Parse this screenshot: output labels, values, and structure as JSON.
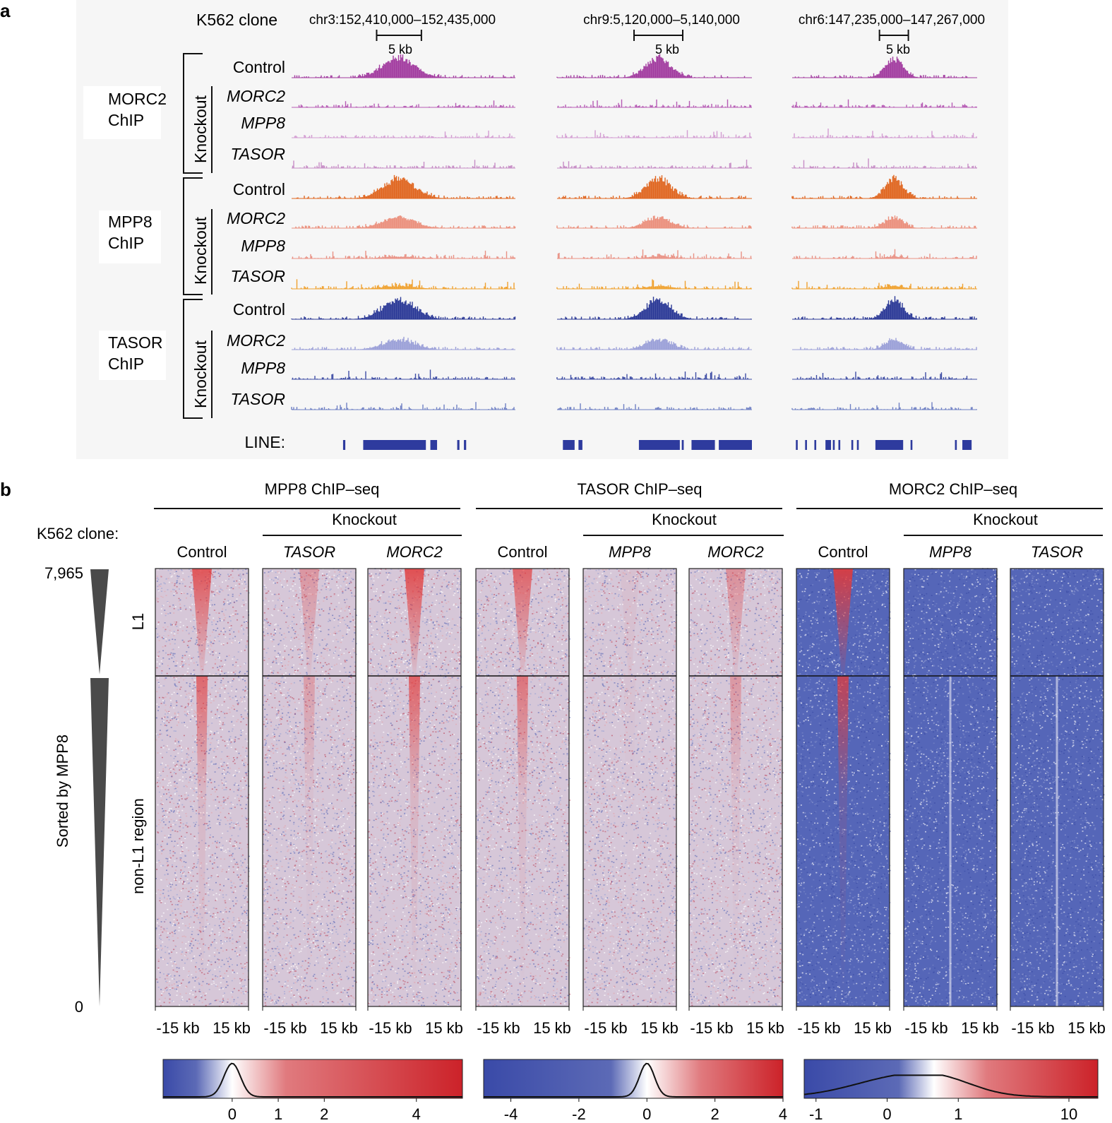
{
  "panel_a": {
    "label": "a",
    "clone_label": "K562 clone",
    "loci": [
      {
        "coord": "chr3:152,410,000–152,435,000",
        "scale": "5 kb",
        "scale_bar_kb": 5,
        "span_kb": 25,
        "peak_center_frac": 0.48,
        "peak_width_frac": 0.22,
        "line_blocks_frac": [
          [
            0.23,
            0.24
          ],
          [
            0.32,
            0.6
          ],
          [
            0.62,
            0.65
          ],
          [
            0.74,
            0.75
          ],
          [
            0.77,
            0.78
          ]
        ]
      },
      {
        "coord": "chr9:5,120,000–5,140,000",
        "scale": "5 kb",
        "scale_bar_kb": 5,
        "span_kb": 20,
        "peak_center_frac": 0.52,
        "peak_width_frac": 0.2,
        "line_blocks_frac": [
          [
            0.03,
            0.09
          ],
          [
            0.11,
            0.13
          ],
          [
            0.42,
            0.63
          ],
          [
            0.64,
            0.65
          ],
          [
            0.69,
            0.81
          ],
          [
            0.83,
            1.0
          ]
        ]
      },
      {
        "coord": "chr6:147,235,000–147,267,000",
        "scale": "5 kb",
        "scale_bar_kb": 5,
        "span_kb": 32,
        "peak_center_frac": 0.55,
        "peak_width_frac": 0.15,
        "line_blocks_frac": [
          [
            0.02,
            0.03
          ],
          [
            0.07,
            0.08
          ],
          [
            0.12,
            0.13
          ],
          [
            0.18,
            0.21
          ],
          [
            0.22,
            0.23
          ],
          [
            0.25,
            0.26
          ],
          [
            0.32,
            0.33
          ],
          [
            0.35,
            0.36
          ],
          [
            0.45,
            0.6
          ],
          [
            0.64,
            0.65
          ],
          [
            0.88,
            0.89
          ],
          [
            0.92,
            0.97
          ]
        ]
      }
    ],
    "chip_groups": [
      {
        "label_line1": "MORC2",
        "label_line2": "ChIP",
        "knockout_label": "Knockout",
        "tracks": [
          {
            "label": "Control",
            "italic": false,
            "color": "#a23b9f",
            "signal": 1.0
          },
          {
            "label": "MORC2",
            "italic": true,
            "color": "#b65bb4",
            "signal": 0.0
          },
          {
            "label": "MPP8",
            "italic": true,
            "color": "#d39cd2",
            "signal": 0.0
          },
          {
            "label": "TASOR",
            "italic": true,
            "color": "#c78dc6",
            "signal": 0.0
          }
        ]
      },
      {
        "label_line1": "MPP8",
        "label_line2": "ChIP",
        "knockout_label": "Knockout",
        "tracks": [
          {
            "label": "Control",
            "italic": false,
            "color": "#e0651f",
            "signal": 1.0
          },
          {
            "label": "MORC2",
            "italic": true,
            "color": "#eb8f7c",
            "signal": 0.55
          },
          {
            "label": "MPP8",
            "italic": true,
            "color": "#e99184",
            "signal": 0.1
          },
          {
            "label": "TASOR",
            "italic": true,
            "color": "#f0a12e",
            "signal": 0.15
          }
        ]
      },
      {
        "label_line1": "TASOR",
        "label_line2": "ChIP",
        "knockout_label": "Knockout",
        "tracks": [
          {
            "label": "Control",
            "italic": false,
            "color": "#2a3896",
            "signal": 1.0
          },
          {
            "label": "MORC2",
            "italic": true,
            "color": "#9a9fd8",
            "signal": 0.5
          },
          {
            "label": "MPP8",
            "italic": true,
            "color": "#3f4ea5",
            "signal": 0.0
          },
          {
            "label": "TASOR",
            "italic": true,
            "color": "#6f80c4",
            "signal": 0.0
          }
        ]
      }
    ],
    "line_label": "LINE:",
    "line_color": "#2e3b9e"
  },
  "panel_b": {
    "label": "b",
    "clone_label": "K562 clone:",
    "sort_label": "Sorted by MPP8",
    "sort_max": "7,965",
    "sort_min": "0",
    "region_l1": "L1",
    "region_non_l1": "non-L1 region",
    "x_tick_left": "-15 kb",
    "x_tick_right": "15 kb",
    "knockout_label": "Knockout",
    "groups": [
      {
        "title": "MPP8 ChIP–seq",
        "columns": [
          {
            "label": "Control",
            "italic": false,
            "signal": 0.8,
            "bg": "pink"
          },
          {
            "label": "TASOR",
            "italic": true,
            "signal": 0.35,
            "bg": "pink"
          },
          {
            "label": "MORC2",
            "italic": true,
            "signal": 0.85,
            "bg": "pink"
          }
        ],
        "colorbar": {
          "ticks": [
            {
              "v": 0,
              "label": "0"
            },
            {
              "v": 1,
              "label": "1"
            },
            {
              "v": 2,
              "label": "2"
            },
            {
              "v": 4,
              "label": "4"
            }
          ],
          "min": -1.5,
          "max": 5.0,
          "white_at": 0.0,
          "hist_peak": 0.0,
          "hist_sd": 0.18
        }
      },
      {
        "title": "TASOR ChIP–seq",
        "columns": [
          {
            "label": "Control",
            "italic": false,
            "signal": 0.7,
            "bg": "pink"
          },
          {
            "label": "MPP8",
            "italic": true,
            "signal": 0.05,
            "bg": "pink"
          },
          {
            "label": "MORC2",
            "italic": true,
            "signal": 0.4,
            "bg": "pink"
          }
        ],
        "colorbar": {
          "ticks": [
            {
              "v": -4,
              "label": "-4"
            },
            {
              "v": -2,
              "label": "-2"
            },
            {
              "v": 0,
              "label": "0"
            },
            {
              "v": 2,
              "label": "2"
            },
            {
              "v": 4,
              "label": "4"
            }
          ],
          "min": -4.8,
          "max": 4.0,
          "white_at": 0.0,
          "hist_peak": 0.0,
          "hist_sd": 0.22
        }
      },
      {
        "title": "MORC2 ChIP–seq",
        "columns": [
          {
            "label": "Control",
            "italic": false,
            "signal": 0.9,
            "bg": "blue"
          },
          {
            "label": "MPP8",
            "italic": true,
            "signal": 0.0,
            "bg": "blue"
          },
          {
            "label": "TASOR",
            "italic": true,
            "signal": 0.0,
            "bg": "blue"
          }
        ],
        "colorbar": {
          "ticks": [
            {
              "v": -1,
              "label": "-1"
            },
            {
              "v": 0,
              "label": "0"
            },
            {
              "v": 1,
              "label": "1"
            },
            {
              "v": 10,
              "label": "10"
            }
          ],
          "scale": "asinh",
          "min": -1.3,
          "max": 18,
          "white_at": 0.55,
          "hist_peak": 0.15,
          "hist_sd": 0.45
        }
      }
    ],
    "colors": {
      "blue": "#3a4aa8",
      "white": "#ffffff",
      "red": "#cc2229"
    }
  }
}
